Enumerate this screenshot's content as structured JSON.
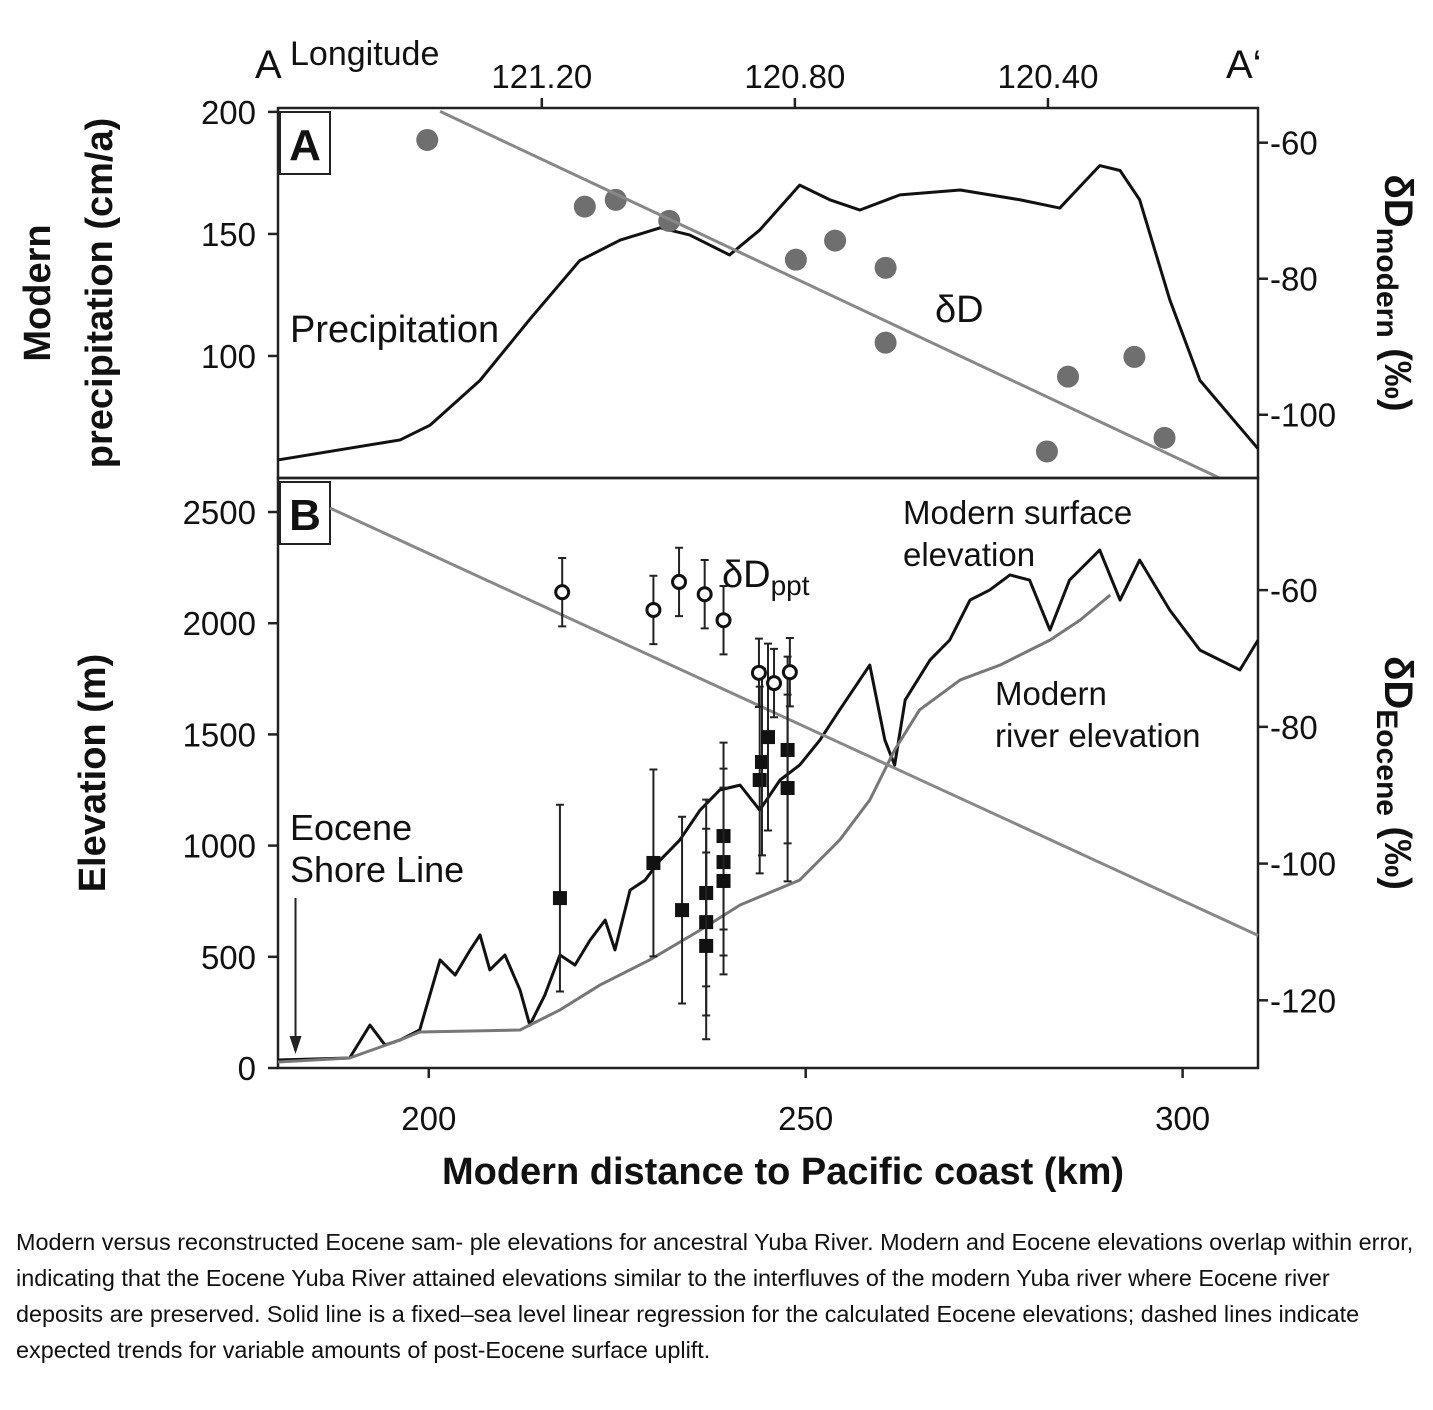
{
  "chart_data": [
    {
      "type": "line",
      "panel_label": "A",
      "top_axis": {
        "label": "Longitude",
        "left_label": "A",
        "right_label": "A‘",
        "lim": [
          121.617,
          120.068
        ],
        "ticks": [
          {
            "value": 121.2,
            "label": "121.20"
          },
          {
            "value": 120.8,
            "label": "120.80"
          },
          {
            "value": 120.4,
            "label": "120.40"
          }
        ]
      },
      "ylabel": [
        "Modern",
        "precipitation (cm/a)"
      ],
      "y2label": {
        "main": "δD",
        "sub": "modern",
        "unit": " (‰)"
      },
      "xlim": [
        180,
        310
      ],
      "ylim": [
        50,
        201.6
      ],
      "yticks": [
        100,
        150,
        200
      ],
      "y2lim": [
        -109.3,
        -54.9
      ],
      "y2ticks": [
        -60,
        -80,
        -100
      ],
      "series": [
        {
          "name": "Precipitation",
          "type": "line",
          "color": "#111111",
          "x": [
            180,
            196.2,
            200.2,
            206.8,
            213.4,
            220,
            225.4,
            230.7,
            234.6,
            239.9,
            243.9,
            249.2,
            253.2,
            257.2,
            262.5,
            270.5,
            278.4,
            283.7,
            289,
            291.7,
            294.3,
            298.3,
            302.3,
            310
          ],
          "values": [
            57.4,
            65.6,
            71.7,
            90,
            115,
            139,
            147.5,
            152.5,
            149.6,
            141.4,
            151.6,
            170,
            164,
            159.8,
            166,
            168,
            164,
            160.6,
            178,
            176,
            164,
            123,
            90,
            62
          ]
        },
        {
          "name": "δD",
          "type": "scatter",
          "marker": "circle",
          "color": "#6f6f6f",
          "axis": "y2",
          "x": [
            199.8,
            220.7,
            224.8,
            231.9,
            248.7,
            253.9,
            260.6,
            260.6,
            282,
            284.8,
            293.6,
            297.6
          ],
          "values": [
            -59.6,
            -69.4,
            -68.4,
            -71.5,
            -77.2,
            -74.4,
            -78.4,
            -89.4,
            -105.4,
            -94.4,
            -91.5,
            -103.4
          ]
        },
        {
          "type": "line",
          "color": "#888888",
          "axis": "y2",
          "x": [
            201.5,
            304.9
          ],
          "values": [
            -55.4,
            -109.3
          ]
        }
      ]
    },
    {
      "type": "line",
      "panel_label": "B",
      "xlabel": "Modern distance to Pacific coast (km)",
      "ylabel": [
        "Elevation (m)"
      ],
      "y2label": {
        "main": "δD",
        "sub": "Eocene",
        "unit": " (‰)"
      },
      "xlim": [
        180,
        310
      ],
      "xticks": [
        200,
        250,
        300
      ],
      "ylim": [
        0,
        2653
      ],
      "yticks": [
        0,
        500,
        1000,
        1500,
        2000,
        2500
      ],
      "y2lim": [
        -129.9,
        -43.6
      ],
      "y2ticks": [
        -60,
        -80,
        -100,
        -120
      ],
      "annotations": [
        {
          "lines": [
            "Eocene",
            "Shore Line"
          ],
          "x": 180.6,
          "y": 27
        }
      ],
      "series": [
        {
          "label_lines": [
            "Modern surface",
            "elevation"
          ],
          "type": "line",
          "color": "#111111",
          "x": [
            180,
            189.5,
            192.2,
            194.2,
            196.2,
            198.8,
            201.5,
            203.5,
            205.5,
            206.8,
            208.1,
            210.1,
            212.1,
            213.4,
            215.4,
            217.4,
            219.4,
            221.4,
            223.4,
            224.7,
            226.7,
            228.7,
            230.7,
            233.3,
            236,
            238.6,
            241.3,
            243.9,
            246.6,
            249.2,
            251.9,
            254.5,
            258.5,
            260.5,
            261.8,
            263.2,
            266.5,
            269.1,
            271.8,
            274.4,
            277.1,
            279.7,
            282.4,
            285,
            289,
            291.7,
            294.3,
            298.3,
            302.3,
            307.6,
            310
          ],
          "values": [
            36,
            45,
            193,
            103,
            126,
            171,
            486,
            418,
            531,
            598,
            441,
            508,
            351,
            193,
            328,
            508,
            463,
            575,
            665,
            531,
            800,
            845,
            935,
            1025,
            1160,
            1250,
            1272,
            1160,
            1295,
            1362,
            1475,
            1610,
            1812,
            1475,
            1362,
            1655,
            1835,
            1924,
            2104,
            2149,
            2217,
            2194,
            1969,
            2194,
            2329,
            2104,
            2284,
            2059,
            1879,
            1790,
            1924
          ]
        },
        {
          "label_lines": [
            "Modern",
            "river elevation"
          ],
          "type": "line",
          "color": "#777777",
          "x": [
            180,
            189.5,
            196.2,
            198.8,
            212.1,
            217.4,
            222.7,
            229.3,
            236,
            241.3,
            249.2,
            254.5,
            258.5,
            261.8,
            265.1,
            270.5,
            275.8,
            282.4,
            286.4,
            290.4
          ],
          "values": [
            27,
            45,
            126,
            162,
            171,
            261,
            373,
            486,
            620,
            733,
            845,
            1025,
            1205,
            1430,
            1610,
            1745,
            1812,
            1924,
            2014,
            2127
          ]
        },
        {
          "type": "line",
          "color": "#888888",
          "axis": "y2",
          "x": [
            186.9,
            310
          ],
          "values": [
            -48,
            -110.5
          ]
        },
        {
          "type": "scatter",
          "marker": "square",
          "color": "#111111",
          "x": [
            217.4,
            229.8,
            233.6,
            236.8,
            236.8,
            236.8,
            239.1,
            239.1,
            239.1,
            243.9,
            244.2,
            245,
            247.6,
            247.6
          ],
          "values": [
            764,
            922,
            710,
            787,
            656,
            549,
            1043,
            926,
            841,
            1295,
            1376,
            1488,
            1430,
            1259
          ],
          "errors": [
            420,
            420,
            420,
            420,
            420,
            420,
            420,
            420,
            420,
            420,
            420,
            420,
            420,
            420
          ]
        },
        {
          "name": "δD",
          "name_sub": "ppt",
          "type": "scatter",
          "marker": "open-circle",
          "color": "#111111",
          "axis": "y2",
          "x": [
            217.7,
            229.8,
            233.2,
            236.6,
            239.1,
            243.8,
            245.8,
            247.9
          ],
          "values": [
            -60.3,
            -62.9,
            -58.8,
            -60.6,
            -64.4,
            -72.1,
            -73.6,
            -72
          ],
          "errors": [
            5,
            5,
            5,
            5,
            5,
            5,
            5,
            5
          ]
        }
      ]
    }
  ],
  "caption": "Modern versus reconstructed Eocene sam- ple elevations for ancestral Yuba River. Modern and Eocene elevations overlap within error, indicating that the Eocene Yuba River attained elevations similar to the interfluves of the modern Yuba river where Eocene river deposits are preserved. Solid line is a fixed–sea level linear regression for the calculated Eocene elevations; dashed lines indicate expected trends for variable amounts of post-Eocene surface uplift."
}
